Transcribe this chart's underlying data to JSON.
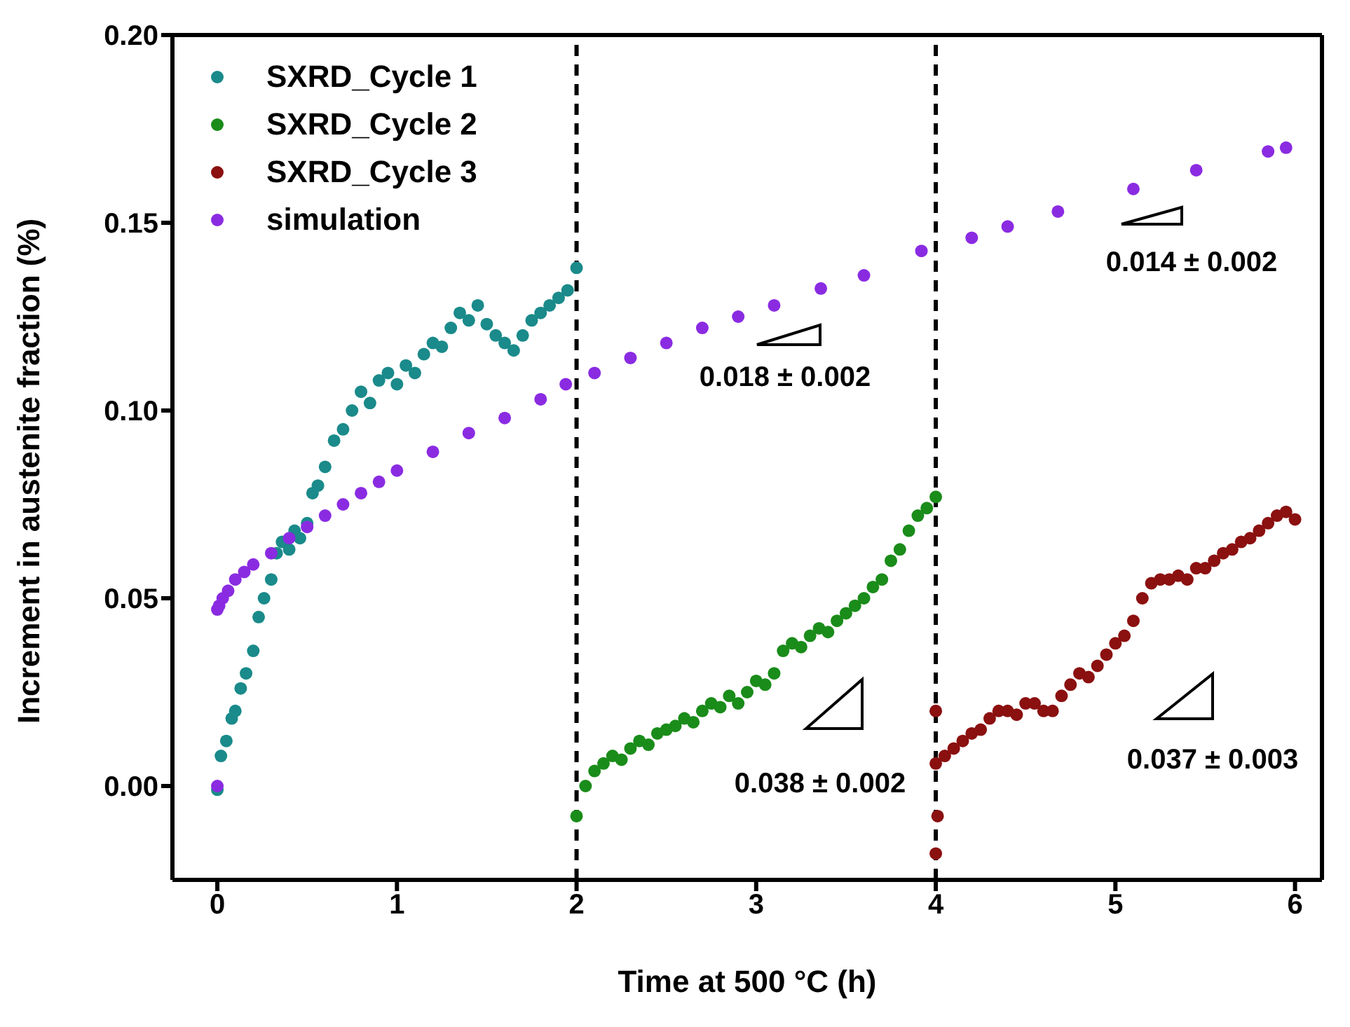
{
  "chart_data": {
    "type": "scatter",
    "xlabel": "Time at 500 °C (h)",
    "ylabel": "Increment in austenite fraction (%)",
    "xlim": [
      -0.25,
      6.15
    ],
    "xticks": [
      0,
      1,
      2,
      3,
      4,
      5,
      6
    ],
    "ylim": [
      -0.025,
      0.2
    ],
    "yticks": [
      {
        "value": 0,
        "label": "0.00"
      },
      0.05,
      {
        "value": 0.1,
        "label": "0.10"
      },
      0.15,
      {
        "value": 0.2,
        "label": "0.20"
      }
    ],
    "legend": "top left",
    "marker": "circle",
    "ref_lines": [
      {
        "axis": "x",
        "value": 2,
        "color": "#000000",
        "line_style": "dashed"
      },
      {
        "axis": "x",
        "value": 4,
        "color": "#000000",
        "line_style": "dashed"
      }
    ],
    "annotations": [
      "0.018 ± 0.002",
      "0.014 ± 0.002",
      "0.038 ± 0.002",
      "0.037 ± 0.003"
    ],
    "series": [
      {
        "name": "SXRD_Cycle 1",
        "color": "#1a8a8a",
        "x": [
          0,
          0.02,
          0.05,
          0.08,
          0.1,
          0.13,
          0.16,
          0.2,
          0.23,
          0.26,
          0.3,
          0.33,
          0.36,
          0.4,
          0.43,
          0.46,
          0.5,
          0.53,
          0.56,
          0.6,
          0.65,
          0.7,
          0.75,
          0.8,
          0.85,
          0.9,
          0.95,
          1.0,
          1.05,
          1.1,
          1.15,
          1.2,
          1.25,
          1.3,
          1.35,
          1.4,
          1.45,
          1.5,
          1.55,
          1.6,
          1.65,
          1.7,
          1.75,
          1.8,
          1.85,
          1.9,
          1.95,
          2.0
        ],
        "values": [
          -0.001,
          0.008,
          0.012,
          0.018,
          0.02,
          0.026,
          0.03,
          0.036,
          0.045,
          0.05,
          0.055,
          0.062,
          0.065,
          0.063,
          0.068,
          0.066,
          0.07,
          0.078,
          0.08,
          0.085,
          0.092,
          0.095,
          0.1,
          0.105,
          0.102,
          0.108,
          0.11,
          0.107,
          0.112,
          0.11,
          0.115,
          0.118,
          0.117,
          0.122,
          0.126,
          0.124,
          0.128,
          0.123,
          0.12,
          0.118,
          0.116,
          0.12,
          0.124,
          0.126,
          0.128,
          0.13,
          0.132,
          0.138
        ]
      },
      {
        "name": "SXRD_Cycle 2",
        "color": "#1a8c1a",
        "x": [
          2.0,
          2.05,
          2.1,
          2.15,
          2.2,
          2.25,
          2.3,
          2.35,
          2.4,
          2.45,
          2.5,
          2.55,
          2.6,
          2.65,
          2.7,
          2.75,
          2.8,
          2.85,
          2.9,
          2.95,
          3.0,
          3.05,
          3.1,
          3.15,
          3.2,
          3.25,
          3.3,
          3.35,
          3.4,
          3.45,
          3.5,
          3.55,
          3.6,
          3.65,
          3.7,
          3.75,
          3.8,
          3.85,
          3.9,
          3.95,
          4.0
        ],
        "values": [
          -0.008,
          0.0,
          0.004,
          0.006,
          0.008,
          0.007,
          0.01,
          0.012,
          0.011,
          0.014,
          0.015,
          0.016,
          0.018,
          0.017,
          0.02,
          0.022,
          0.021,
          0.024,
          0.022,
          0.025,
          0.028,
          0.027,
          0.03,
          0.036,
          0.038,
          0.037,
          0.04,
          0.042,
          0.041,
          0.044,
          0.046,
          0.048,
          0.05,
          0.053,
          0.055,
          0.06,
          0.063,
          0.068,
          0.072,
          0.074,
          0.077
        ]
      },
      {
        "name": "SXRD_Cycle 3",
        "color": "#8b1010",
        "x": [
          4.0,
          4.0,
          4.01,
          4.0,
          4.05,
          4.1,
          4.15,
          4.2,
          4.25,
          4.3,
          4.35,
          4.4,
          4.45,
          4.5,
          4.55,
          4.6,
          4.65,
          4.7,
          4.75,
          4.8,
          4.85,
          4.9,
          4.95,
          5.0,
          5.05,
          5.1,
          5.15,
          5.2,
          5.25,
          5.3,
          5.35,
          5.4,
          5.45,
          5.5,
          5.55,
          5.6,
          5.65,
          5.7,
          5.75,
          5.8,
          5.85,
          5.9,
          5.95,
          6.0
        ],
        "values": [
          0.02,
          -0.018,
          -0.008,
          0.006,
          0.008,
          0.01,
          0.012,
          0.014,
          0.015,
          0.018,
          0.02,
          0.02,
          0.019,
          0.022,
          0.022,
          0.02,
          0.02,
          0.024,
          0.027,
          0.03,
          0.029,
          0.032,
          0.035,
          0.038,
          0.04,
          0.044,
          0.05,
          0.054,
          0.055,
          0.055,
          0.056,
          0.055,
          0.058,
          0.058,
          0.06,
          0.062,
          0.063,
          0.065,
          0.066,
          0.068,
          0.07,
          0.072,
          0.073,
          0.071
        ]
      },
      {
        "name": "simulation",
        "color": "#8a2be2",
        "x": [
          0,
          0,
          0.01,
          0.03,
          0.06,
          0.1,
          0.15,
          0.2,
          0.3,
          0.4,
          0.5,
          0.6,
          0.7,
          0.8,
          0.9,
          1.0,
          1.2,
          1.4,
          1.6,
          1.8,
          1.94,
          2.1,
          2.3,
          2.5,
          2.7,
          2.9,
          3.1,
          3.36,
          3.6,
          3.92,
          4.2,
          4.4,
          4.68,
          5.1,
          5.45,
          5.85,
          5.95
        ],
        "values": [
          0,
          0.047,
          0.048,
          0.05,
          0.052,
          0.055,
          0.057,
          0.059,
          0.062,
          0.066,
          0.069,
          0.072,
          0.075,
          0.078,
          0.081,
          0.084,
          0.089,
          0.094,
          0.098,
          0.103,
          0.107,
          0.11,
          0.114,
          0.118,
          0.122,
          0.125,
          0.128,
          0.1325,
          0.136,
          0.1425,
          0.146,
          0.149,
          0.153,
          0.159,
          0.164,
          0.169,
          0.17
        ]
      }
    ]
  }
}
